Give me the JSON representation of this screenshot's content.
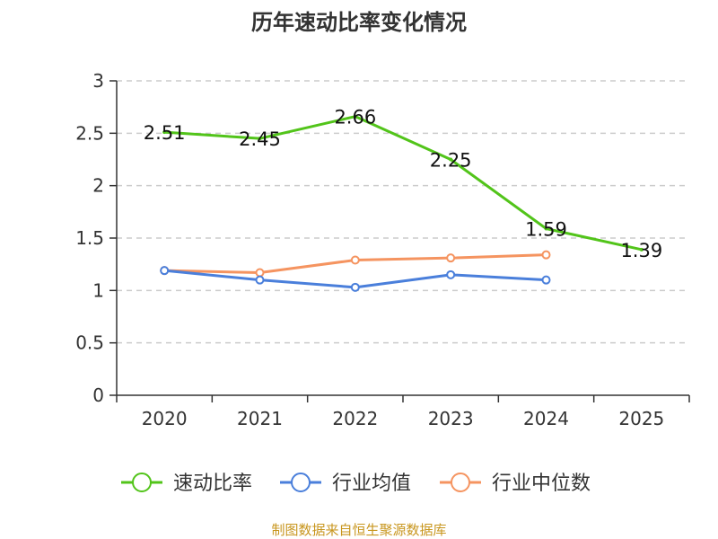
{
  "chart_data": {
    "type": "line",
    "title": "历年速动比率变化情况",
    "categories": [
      "2020",
      "2021",
      "2022",
      "2023",
      "2024",
      "2025"
    ],
    "ylim": [
      0,
      3
    ],
    "yticks": [
      "0",
      "0.5",
      "1",
      "1.5",
      "2",
      "2.5",
      "3"
    ],
    "grid": true,
    "legend_position": "bottom",
    "series": [
      {
        "name": "速动比率",
        "color": "#52c41a",
        "values": [
          2.51,
          2.45,
          2.66,
          2.25,
          1.59,
          1.39
        ],
        "labels": [
          "2.51",
          "2.45",
          "2.66",
          "2.25",
          "1.59",
          "1.39"
        ]
      },
      {
        "name": "行业均值",
        "color": "#4a7fdb",
        "values": [
          1.19,
          1.1,
          1.03,
          1.15,
          1.1,
          null
        ]
      },
      {
        "name": "行业中位数",
        "color": "#f59460",
        "values": [
          1.19,
          1.17,
          1.29,
          1.31,
          1.34,
          null
        ]
      }
    ]
  },
  "source": "制图数据来自恒生聚源数据库"
}
